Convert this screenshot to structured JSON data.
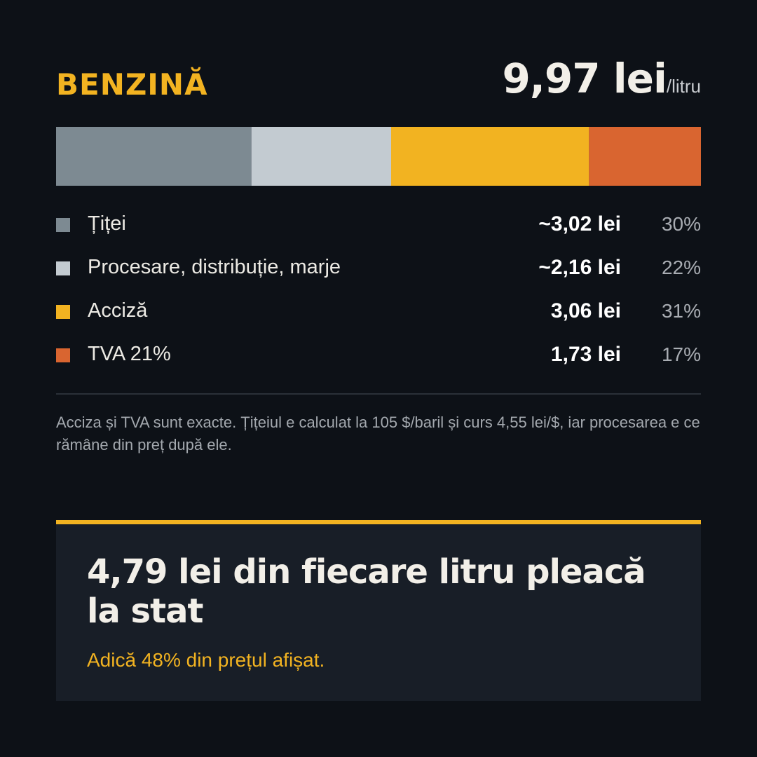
{
  "header": {
    "fuel": "BENZINĂ",
    "price_value": "9,97 lei",
    "price_unit": "/litru"
  },
  "chart_data": {
    "type": "bar",
    "orientation": "horizontal-stacked",
    "total": 9.97,
    "categories": [
      "Țiței",
      "Procesare, distribuție, marje",
      "Acciză",
      "TVA 21%"
    ],
    "values": [
      3.02,
      2.16,
      3.06,
      1.73
    ],
    "value_labels": [
      "~3,02 lei",
      "~2,16 lei",
      "3,06 lei",
      "1,73 lei"
    ],
    "percent_labels": [
      "30%",
      "22%",
      "31%",
      "17%"
    ],
    "colors": [
      "#7d8a92",
      "#c3cbd1",
      "#f2b321",
      "#d96530"
    ],
    "grid": false,
    "legend": "below"
  },
  "note": "Acciza și TVA sunt exacte. Țițeiul e calculat la 105 $/baril și curs 4,55 lei/$, iar procesarea e ce rămâne din preț după ele.",
  "callout": {
    "title": "4,79 lei din fiecare litru pleacă la stat",
    "subtitle": "Adică 48% din prețul afișat.",
    "accent": "#f2b321"
  }
}
